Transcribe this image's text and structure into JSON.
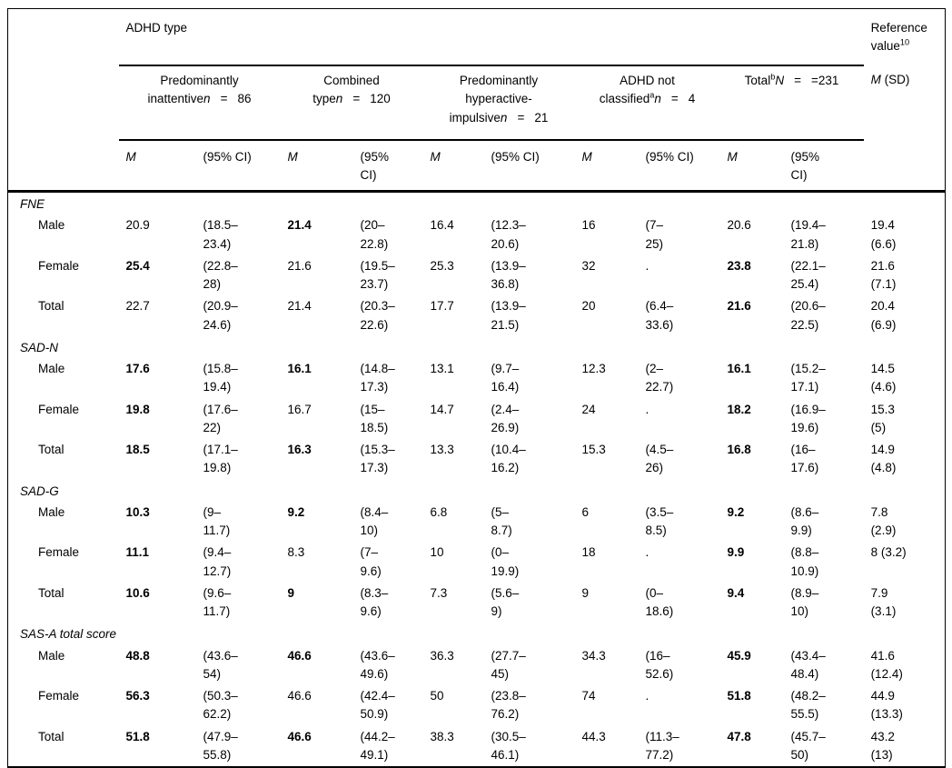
{
  "header": {
    "adhd_type": "ADHD type",
    "reference": {
      "line1": "Reference",
      "line2": "value",
      "sup": "10"
    },
    "ref_subheader": {
      "m": "M",
      "sd": "(SD)"
    },
    "groups": [
      {
        "prefix": "Predominantly\ninattentive",
        "sup": "",
        "n": "n",
        "eq": "=",
        "count": "86"
      },
      {
        "prefix": "Combined\ntype",
        "sup": "",
        "n": "n",
        "eq": "=",
        "count": "120"
      },
      {
        "prefix": "Predominantly\nhyperactive-\nimpulsive",
        "sup": "",
        "n": "n",
        "eq": "=",
        "count": "21"
      },
      {
        "prefix": "ADHD not\nclassified",
        "sup": "a",
        "n": "n",
        "eq": "=",
        "count": "4"
      },
      {
        "prefix": "Total",
        "sup": "b",
        "n": "N",
        "eq": "=",
        "count": "=231"
      }
    ],
    "col_m": "M",
    "ci_labels": [
      "(95% CI)",
      "(95%\nCI)",
      "(95% CI)",
      "(95% CI)",
      "(95%\nCI)"
    ]
  },
  "sections": [
    {
      "label": "FNE",
      "rows": [
        {
          "label": "Male",
          "cells": [
            {
              "m": "20.9",
              "bold": false,
              "ci": "(18.5–\n23.4)"
            },
            {
              "m": "21.4",
              "bold": true,
              "ci": "(20–\n22.8)"
            },
            {
              "m": "16.4",
              "bold": false,
              "ci": "(12.3–\n20.6)"
            },
            {
              "m": "16",
              "bold": false,
              "ci": "(7–\n25)"
            },
            {
              "m": "20.6",
              "bold": false,
              "ci": "(19.4–\n21.8)"
            }
          ],
          "ref": "19.4\n(6.6)"
        },
        {
          "label": "Female",
          "cells": [
            {
              "m": "25.4",
              "bold": true,
              "ci": "(22.8–\n28)"
            },
            {
              "m": "21.6",
              "bold": false,
              "ci": "(19.5–\n23.7)"
            },
            {
              "m": "25.3",
              "bold": false,
              "ci": "(13.9–\n36.8)"
            },
            {
              "m": "32",
              "bold": false,
              "ci": "."
            },
            {
              "m": "23.8",
              "bold": true,
              "ci": "(22.1–\n25.4)"
            }
          ],
          "ref": "21.6\n(7.1)"
        },
        {
          "label": "Total",
          "cells": [
            {
              "m": "22.7",
              "bold": false,
              "ci": "(20.9–\n24.6)"
            },
            {
              "m": "21.4",
              "bold": false,
              "ci": "(20.3–\n22.6)"
            },
            {
              "m": "17.7",
              "bold": false,
              "ci": "(13.9–\n21.5)"
            },
            {
              "m": "20",
              "bold": false,
              "ci": "(6.4–\n33.6)"
            },
            {
              "m": "21.6",
              "bold": true,
              "ci": "(20.6–\n22.5)"
            }
          ],
          "ref": "20.4\n(6.9)"
        }
      ]
    },
    {
      "label": "SAD-N",
      "rows": [
        {
          "label": "Male",
          "cells": [
            {
              "m": "17.6",
              "bold": true,
              "ci": "(15.8–\n19.4)"
            },
            {
              "m": "16.1",
              "bold": true,
              "ci": "(14.8–\n17.3)"
            },
            {
              "m": "13.1",
              "bold": false,
              "ci": "(9.7–\n16.4)"
            },
            {
              "m": "12.3",
              "bold": false,
              "ci": "(2–\n22.7)"
            },
            {
              "m": "16.1",
              "bold": true,
              "ci": "(15.2–\n17.1)"
            }
          ],
          "ref": "14.5\n(4.6)"
        },
        {
          "label": "Female",
          "cells": [
            {
              "m": "19.8",
              "bold": true,
              "ci": "(17.6–\n22)"
            },
            {
              "m": "16.7",
              "bold": false,
              "ci": "(15–\n18.5)"
            },
            {
              "m": "14.7",
              "bold": false,
              "ci": "(2.4–\n26.9)"
            },
            {
              "m": "24",
              "bold": false,
              "ci": "."
            },
            {
              "m": "18.2",
              "bold": true,
              "ci": "(16.9–\n19.6)"
            }
          ],
          "ref": "15.3\n(5)"
        },
        {
          "label": "Total",
          "cells": [
            {
              "m": "18.5",
              "bold": true,
              "ci": "(17.1–\n19.8)"
            },
            {
              "m": "16.3",
              "bold": true,
              "ci": "(15.3–\n17.3)"
            },
            {
              "m": "13.3",
              "bold": false,
              "ci": "(10.4–\n16.2)"
            },
            {
              "m": "15.3",
              "bold": false,
              "ci": "(4.5–\n26)"
            },
            {
              "m": "16.8",
              "bold": true,
              "ci": "(16–\n17.6)"
            }
          ],
          "ref": "14.9\n(4.8)"
        }
      ]
    },
    {
      "label": "SAD-G",
      "rows": [
        {
          "label": "Male",
          "cells": [
            {
              "m": "10.3",
              "bold": true,
              "ci": "(9–\n11.7)"
            },
            {
              "m": "9.2",
              "bold": true,
              "ci": "(8.4–\n10)"
            },
            {
              "m": "6.8",
              "bold": false,
              "ci": "(5–\n8.7)"
            },
            {
              "m": "6",
              "bold": false,
              "ci": "(3.5–\n8.5)"
            },
            {
              "m": "9.2",
              "bold": true,
              "ci": "(8.6–\n9.9)"
            }
          ],
          "ref": "7.8\n(2.9)"
        },
        {
          "label": "Female",
          "cells": [
            {
              "m": "11.1",
              "bold": true,
              "ci": "(9.4–\n12.7)"
            },
            {
              "m": "8.3",
              "bold": false,
              "ci": "(7–\n9.6)"
            },
            {
              "m": "10",
              "bold": false,
              "ci": "(0–\n19.9)"
            },
            {
              "m": "18",
              "bold": false,
              "ci": "."
            },
            {
              "m": "9.9",
              "bold": true,
              "ci": "(8.8–\n10.9)"
            }
          ],
          "ref": "8 (3.2)"
        },
        {
          "label": "Total",
          "cells": [
            {
              "m": "10.6",
              "bold": true,
              "ci": "(9.6–\n11.7)"
            },
            {
              "m": "9",
              "bold": true,
              "ci": "(8.3–\n9.6)"
            },
            {
              "m": "7.3",
              "bold": false,
              "ci": "(5.6–\n9)"
            },
            {
              "m": "9",
              "bold": false,
              "ci": "(0–\n18.6)"
            },
            {
              "m": "9.4",
              "bold": true,
              "ci": "(8.9–\n10)"
            }
          ],
          "ref": "7.9\n(3.1)"
        }
      ]
    },
    {
      "label": "SAS-A total score",
      "rows": [
        {
          "label": "Male",
          "cells": [
            {
              "m": "48.8",
              "bold": true,
              "ci": "(43.6–\n54)"
            },
            {
              "m": "46.6",
              "bold": true,
              "ci": "(43.6–\n49.6)"
            },
            {
              "m": "36.3",
              "bold": false,
              "ci": "(27.7–\n45)"
            },
            {
              "m": "34.3",
              "bold": false,
              "ci": "(16–\n52.6)"
            },
            {
              "m": "45.9",
              "bold": true,
              "ci": "(43.4–\n48.4)"
            }
          ],
          "ref": "41.6\n(12.4)"
        },
        {
          "label": "Female",
          "cells": [
            {
              "m": "56.3",
              "bold": true,
              "ci": "(50.3–\n62.2)"
            },
            {
              "m": "46.6",
              "bold": false,
              "ci": "(42.4–\n50.9)"
            },
            {
              "m": "50",
              "bold": false,
              "ci": "(23.8–\n76.2)"
            },
            {
              "m": "74",
              "bold": false,
              "ci": "."
            },
            {
              "m": "51.8",
              "bold": true,
              "ci": "(48.2–\n55.5)"
            }
          ],
          "ref": "44.9\n(13.3)"
        },
        {
          "label": "Total",
          "cells": [
            {
              "m": "51.8",
              "bold": true,
              "ci": "(47.9–\n55.8)"
            },
            {
              "m": "46.6",
              "bold": true,
              "ci": "(44.2–\n49.1)"
            },
            {
              "m": "38.3",
              "bold": false,
              "ci": "(30.5–\n46.1)"
            },
            {
              "m": "44.3",
              "bold": false,
              "ci": "(11.3–\n77.2)"
            },
            {
              "m": "47.8",
              "bold": true,
              "ci": "(45.7–\n50)"
            }
          ],
          "ref": "43.2\n(13)"
        }
      ]
    }
  ]
}
